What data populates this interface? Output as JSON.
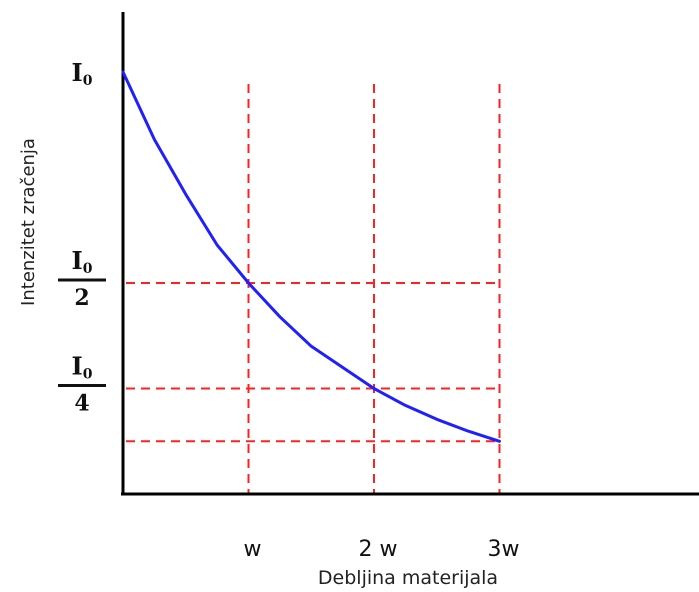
{
  "chart_data": {
    "type": "line",
    "xlabel": "Debljina materijala",
    "ylabel": "Intenzitet zračenja",
    "x_ticks": [
      "w",
      "2 w",
      "3w"
    ],
    "x_tick_values": [
      1,
      2,
      3
    ],
    "y_ticks": [
      {
        "value": 1.0,
        "num": "I",
        "sub": "0",
        "den": ""
      },
      {
        "value": 0.5,
        "num": "I",
        "sub": "0",
        "den": "2"
      },
      {
        "value": 0.25,
        "num": "I",
        "sub": "0",
        "den": "4"
      }
    ],
    "series": [
      {
        "x": [
          0,
          0.25,
          0.5,
          0.75,
          1,
          1.25,
          1.5,
          1.75,
          2,
          2.25,
          2.5,
          2.75,
          3
        ],
        "y": [
          1.0,
          0.84,
          0.71,
          0.59,
          0.5,
          0.42,
          0.35,
          0.3,
          0.25,
          0.21,
          0.177,
          0.149,
          0.125
        ]
      }
    ],
    "guide_lines_y": [
      0.5,
      0.25,
      0.125
    ],
    "guide_lines_x": [
      1,
      2,
      3
    ],
    "xlim": [
      0,
      3.35
    ],
    "ylim": [
      0,
      1.0
    ],
    "colors": {
      "curve": "#1f1fff",
      "guides": "#ff2020",
      "axes": "#000000"
    },
    "grid": false
  }
}
